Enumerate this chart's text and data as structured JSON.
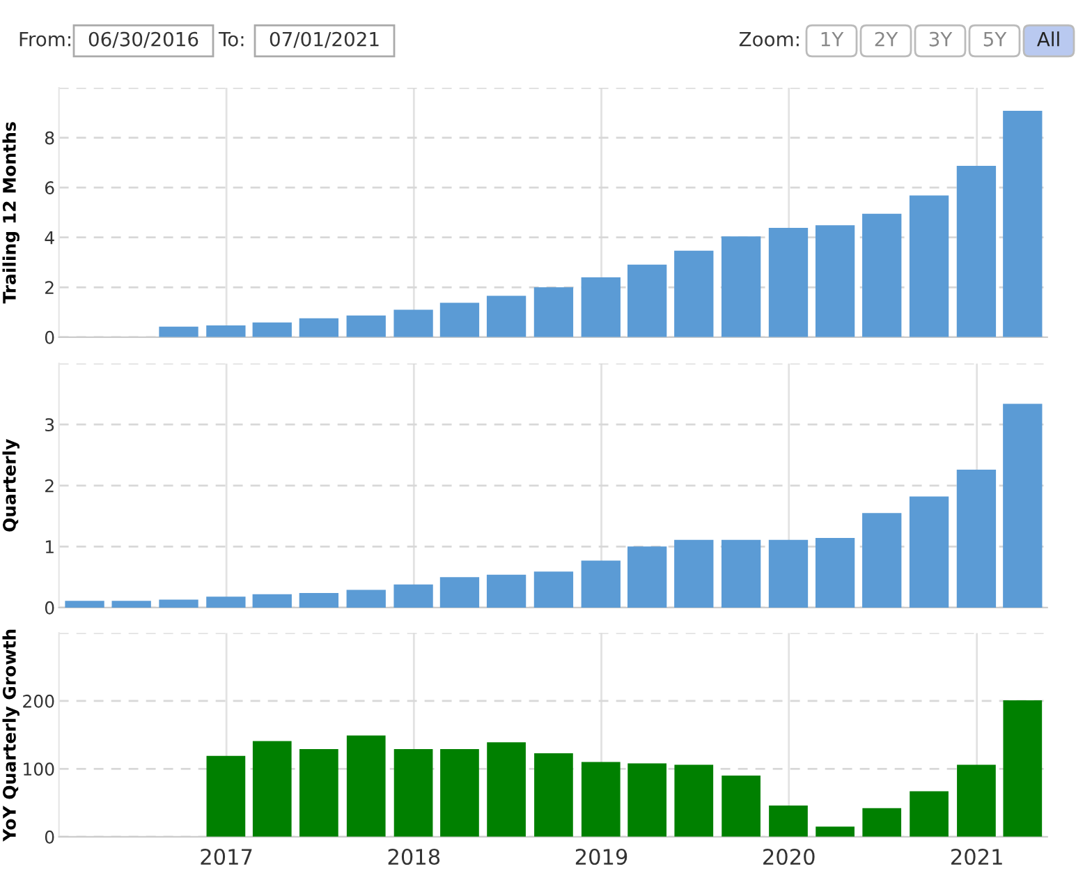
{
  "chart_data": [
    {
      "type": "other",
      "annotations": [
        "From:",
        "06/30/2016",
        "To:",
        "07/01/2021",
        "Zoom:",
        "1Y",
        "2Y",
        "3Y",
        "5Y",
        "All"
      ]
    },
    {
      "type": "bar",
      "ylabel": "Trailing 12 Months",
      "x": [
        "2016-09-30",
        "2016-12-31",
        "2017-03-31",
        "2017-06-30",
        "2017-09-30",
        "2017-12-31",
        "2018-03-31",
        "2018-06-30",
        "2018-09-30",
        "2018-12-31",
        "2019-03-31",
        "2019-06-30",
        "2019-09-30",
        "2019-12-31",
        "2020-03-31",
        "2020-06-30",
        "2020-09-30",
        "2020-12-31",
        "2021-03-31"
      ],
      "values": [
        0.42,
        0.47,
        0.59,
        0.76,
        0.87,
        1.1,
        1.38,
        1.66,
        2.0,
        2.4,
        2.91,
        3.47,
        4.04,
        4.38,
        4.49,
        4.95,
        5.68,
        6.87,
        9.08
      ],
      "color": "#5b9bd5",
      "xlim": [
        "2016-02-10",
        "2021-05-18"
      ],
      "ylim": [
        0,
        10
      ],
      "yticks": [
        0,
        2,
        4,
        6,
        8,
        {
          "value": 10,
          "label": null
        }
      ],
      "grid": true,
      "tick_labels": "y"
    },
    {
      "type": "bar",
      "ylabel": "Quarterly",
      "x": [
        "2016-03-31",
        "2016-06-30",
        "2016-09-30",
        "2016-12-31",
        "2017-03-31",
        "2017-06-30",
        "2017-09-30",
        "2017-12-31",
        "2018-03-31",
        "2018-06-30",
        "2018-09-30",
        "2018-12-31",
        "2019-03-31",
        "2019-06-30",
        "2019-09-30",
        "2019-12-31",
        "2020-03-31",
        "2020-06-30",
        "2020-09-30",
        "2020-12-31",
        "2021-03-31"
      ],
      "values": [
        0.11,
        0.11,
        0.13,
        0.18,
        0.22,
        0.24,
        0.29,
        0.38,
        0.5,
        0.54,
        0.59,
        0.77,
        1.0,
        1.11,
        1.11,
        1.11,
        1.14,
        1.55,
        1.82,
        2.26,
        3.34
      ],
      "color": "#5b9bd5",
      "xlim": [
        "2016-02-10",
        "2021-05-18"
      ],
      "ylim": [
        0,
        4
      ],
      "yticks": [
        0,
        1,
        2,
        3,
        {
          "value": 4,
          "label": null
        }
      ],
      "grid": true,
      "tick_labels": "y"
    },
    {
      "type": "bar",
      "ylabel": "YoY Quarterly Growth",
      "x": [
        "2016-12-31",
        "2017-03-31",
        "2017-06-30",
        "2017-09-30",
        "2017-12-31",
        "2018-03-31",
        "2018-06-30",
        "2018-09-30",
        "2018-12-31",
        "2019-03-31",
        "2019-06-30",
        "2019-09-30",
        "2019-12-31",
        "2020-03-31",
        "2020-06-30",
        "2020-09-30",
        "2020-12-31",
        "2021-03-31"
      ],
      "values": [
        119,
        141,
        129,
        149,
        129,
        129,
        139,
        123,
        110,
        108,
        106,
        90,
        46,
        15,
        42,
        67,
        106,
        201
      ],
      "color": "#008000",
      "xlim": [
        "2016-02-10",
        "2021-05-18"
      ],
      "xticks": [
        "2017",
        "2018",
        "2019",
        "2020",
        "2021"
      ],
      "ylim": [
        0,
        300
      ],
      "yticks": [
        0,
        100,
        200,
        {
          "value": 300,
          "label": null
        }
      ],
      "grid": true
    }
  ]
}
